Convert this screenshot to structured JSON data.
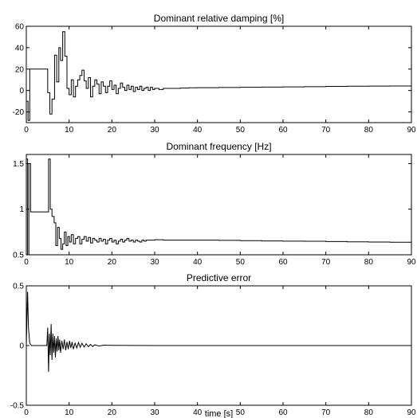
{
  "chart_data": [
    {
      "type": "line",
      "title": "Dominant relative damping [%]",
      "xlabel": "",
      "ylabel": "",
      "xlim": [
        0,
        90
      ],
      "ylim": [
        -30,
        60
      ],
      "x_ticks": [
        0,
        10,
        20,
        30,
        40,
        50,
        60,
        70,
        80,
        90
      ],
      "y_ticks": [
        -20,
        0,
        20,
        40,
        60
      ],
      "grid": false,
      "series": [
        {
          "step": true,
          "x": [
            0,
            0.4,
            0.8,
            1.2,
            4.5,
            5.0,
            5.5,
            6.0,
            6.6,
            7.1,
            7.6,
            8.0,
            8.5,
            9.0,
            9.5,
            10.0,
            10.5,
            11.0,
            11.5,
            12.0,
            12.5,
            13.0,
            13.5,
            14.0,
            14.5,
            15.0,
            15.5,
            16.0,
            16.5,
            17.0,
            17.5,
            18.0,
            18.5,
            19.0,
            19.5,
            20.0,
            20.5,
            21.0,
            21.5,
            22.0,
            22.5,
            23.0,
            23.5,
            24.0,
            24.5,
            25.0,
            25.5,
            26.0,
            26.5,
            27.0,
            27.5,
            28.0,
            28.5,
            29.0,
            29.5,
            30.0,
            31.0,
            32.0,
            34.0,
            36.0,
            38.0,
            40.0,
            45.0,
            50.0,
            55.0,
            60.0,
            65.0,
            70.0,
            75.0,
            80.0,
            85.0,
            90.0
          ],
          "y": [
            -10,
            -28,
            20,
            20,
            20,
            -2,
            -22,
            -8,
            33,
            8,
            40,
            28,
            55,
            32,
            2,
            -4,
            10,
            -6,
            4,
            10,
            14,
            19,
            9,
            2,
            12,
            -6,
            4,
            10,
            6,
            -3,
            8,
            4,
            -2,
            4,
            9,
            1,
            5,
            -3,
            2,
            7,
            3,
            0,
            5,
            1,
            4,
            -1,
            3,
            1,
            4,
            0,
            2,
            3,
            0,
            3,
            1,
            2,
            1,
            2,
            2,
            2.3,
            2.5,
            2.6,
            2.8,
            3.0,
            3.2,
            3.4,
            3.6,
            3.8,
            4.0,
            4.1,
            4.2,
            4.3
          ]
        }
      ]
    },
    {
      "type": "line",
      "title": "Dominant frequency [Hz]",
      "xlabel": "",
      "ylabel": "",
      "xlim": [
        0,
        90
      ],
      "ylim": [
        0.5,
        1.6
      ],
      "x_ticks": [
        0,
        10,
        20,
        30,
        40,
        50,
        60,
        70,
        80,
        90
      ],
      "y_ticks": [
        0.5,
        1,
        1.5
      ],
      "grid": false,
      "series": [
        {
          "step": true,
          "x": [
            0,
            0.3,
            0.6,
            1.0,
            5.2,
            5.6,
            6.0,
            6.5,
            6.9,
            7.3,
            7.7,
            8.1,
            8.5,
            8.9,
            9.3,
            9.7,
            10.1,
            10.5,
            11.0,
            11.5,
            12.0,
            12.5,
            13.0,
            13.5,
            14.0,
            14.5,
            15.0,
            15.5,
            16.0,
            16.5,
            17.0,
            17.5,
            18.0,
            18.5,
            19.0,
            19.5,
            20.0,
            20.5,
            21.0,
            21.5,
            22.0,
            22.5,
            23.0,
            23.5,
            24.0,
            24.5,
            25.0,
            25.5,
            26.0,
            26.5,
            27.0,
            27.5,
            28.0,
            29.0,
            30.0,
            32.0,
            35.0,
            40.0,
            45.0,
            50.0,
            55.0,
            60.0,
            65.0,
            70.0,
            75.0,
            80.0,
            85.0,
            90.0
          ],
          "y": [
            1.55,
            0.5,
            1.5,
            0.97,
            1.55,
            1.0,
            0.92,
            0.85,
            0.6,
            0.8,
            0.68,
            0.56,
            0.62,
            0.75,
            0.6,
            0.7,
            0.64,
            0.72,
            0.62,
            0.68,
            0.7,
            0.62,
            0.67,
            0.7,
            0.65,
            0.69,
            0.63,
            0.68,
            0.66,
            0.64,
            0.68,
            0.65,
            0.67,
            0.62,
            0.66,
            0.68,
            0.64,
            0.66,
            0.62,
            0.65,
            0.67,
            0.64,
            0.66,
            0.68,
            0.65,
            0.66,
            0.64,
            0.66,
            0.65,
            0.64,
            0.66,
            0.65,
            0.66,
            0.66,
            0.665,
            0.66,
            0.66,
            0.66,
            0.658,
            0.655,
            0.652,
            0.65,
            0.648,
            0.645,
            0.642,
            0.64,
            0.637,
            0.635
          ]
        }
      ]
    },
    {
      "type": "line",
      "title": "Predictive error",
      "xlabel": "time [s]",
      "ylabel": "",
      "xlim": [
        0,
        90
      ],
      "ylim": [
        -0.5,
        0.5
      ],
      "x_ticks": [
        0,
        10,
        20,
        30,
        40,
        50,
        60,
        70,
        80,
        90
      ],
      "y_ticks": [
        -0.5,
        0,
        0.5
      ],
      "grid": false,
      "series": [
        {
          "step": false,
          "x": [
            0,
            0.3,
            0.5,
            0.8,
            1.2,
            1.8,
            3.0,
            4.8,
            5.0,
            5.2,
            5.4,
            5.6,
            5.8,
            6.0,
            6.2,
            6.4,
            6.6,
            6.8,
            7.0,
            7.2,
            7.4,
            7.6,
            7.8,
            8.0,
            8.3,
            8.6,
            8.9,
            9.2,
            9.5,
            9.8,
            10.1,
            10.4,
            10.7,
            11.0,
            11.4,
            11.8,
            12.2,
            12.6,
            13.0,
            13.5,
            14.0,
            14.5,
            15.0,
            15.5,
            16.0,
            17.0,
            18.0,
            20.0,
            25.0,
            30.0,
            40.0,
            50.0,
            60.0,
            70.0,
            80.0,
            90.0
          ],
          "y": [
            0,
            0.45,
            0.15,
            0.02,
            0,
            0,
            0,
            0,
            0.15,
            -0.22,
            0.1,
            -0.08,
            0.18,
            -0.12,
            0.1,
            -0.06,
            0.08,
            -0.1,
            0.06,
            -0.05,
            0.08,
            -0.04,
            0.05,
            -0.06,
            0.04,
            -0.03,
            0.05,
            -0.04,
            0.03,
            -0.03,
            0.04,
            -0.02,
            0.03,
            -0.03,
            0.02,
            -0.02,
            0.025,
            -0.015,
            0.02,
            -0.012,
            0.015,
            -0.01,
            0.01,
            -0.008,
            0.006,
            -0.004,
            0.003,
            0.002,
            0.001,
            0,
            0,
            0,
            0,
            0,
            0,
            0
          ]
        }
      ]
    }
  ]
}
